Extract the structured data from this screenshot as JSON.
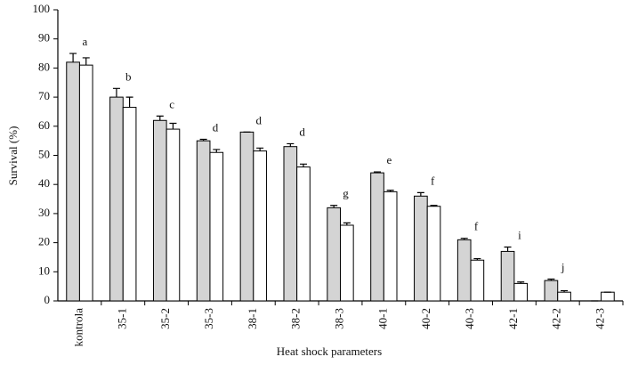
{
  "chart_data": {
    "type": "bar",
    "y_label": "Survival (%)",
    "x_label": "Heat shock parameters",
    "categories": [
      "kontrola",
      "35-1",
      "35-2",
      "35-3",
      "38-1",
      "38-2",
      "38-3",
      "40-1",
      "40-2",
      "40-3",
      "42-1",
      "42-2",
      "42-3"
    ],
    "series": [
      {
        "color": "#d4d4d4",
        "values": [
          82,
          70,
          62,
          55,
          58,
          53,
          32,
          44,
          36,
          21,
          17,
          7,
          0
        ],
        "errors": [
          3,
          3,
          1.5,
          0.5,
          0,
          1,
          0.8,
          0.3,
          1.2,
          0.5,
          1.5,
          0.5,
          0
        ]
      },
      {
        "color": "#ffffff",
        "values": [
          81,
          66.5,
          59,
          51,
          51.5,
          46,
          26,
          37.5,
          32.5,
          14,
          6,
          3,
          3
        ],
        "errors": [
          2.5,
          3.5,
          2,
          1,
          1,
          1,
          0.8,
          0.5,
          0.3,
          0.5,
          0.5,
          0.5,
          0
        ]
      }
    ],
    "annotations": [
      "a",
      "b",
      "c",
      "d",
      "d",
      "d",
      "g",
      "e",
      "f",
      "f",
      "i",
      "j",
      null
    ],
    "ylim": [
      0,
      100
    ],
    "yticks": [
      0,
      10,
      20,
      30,
      40,
      50,
      60,
      70,
      80,
      90,
      100
    ]
  }
}
